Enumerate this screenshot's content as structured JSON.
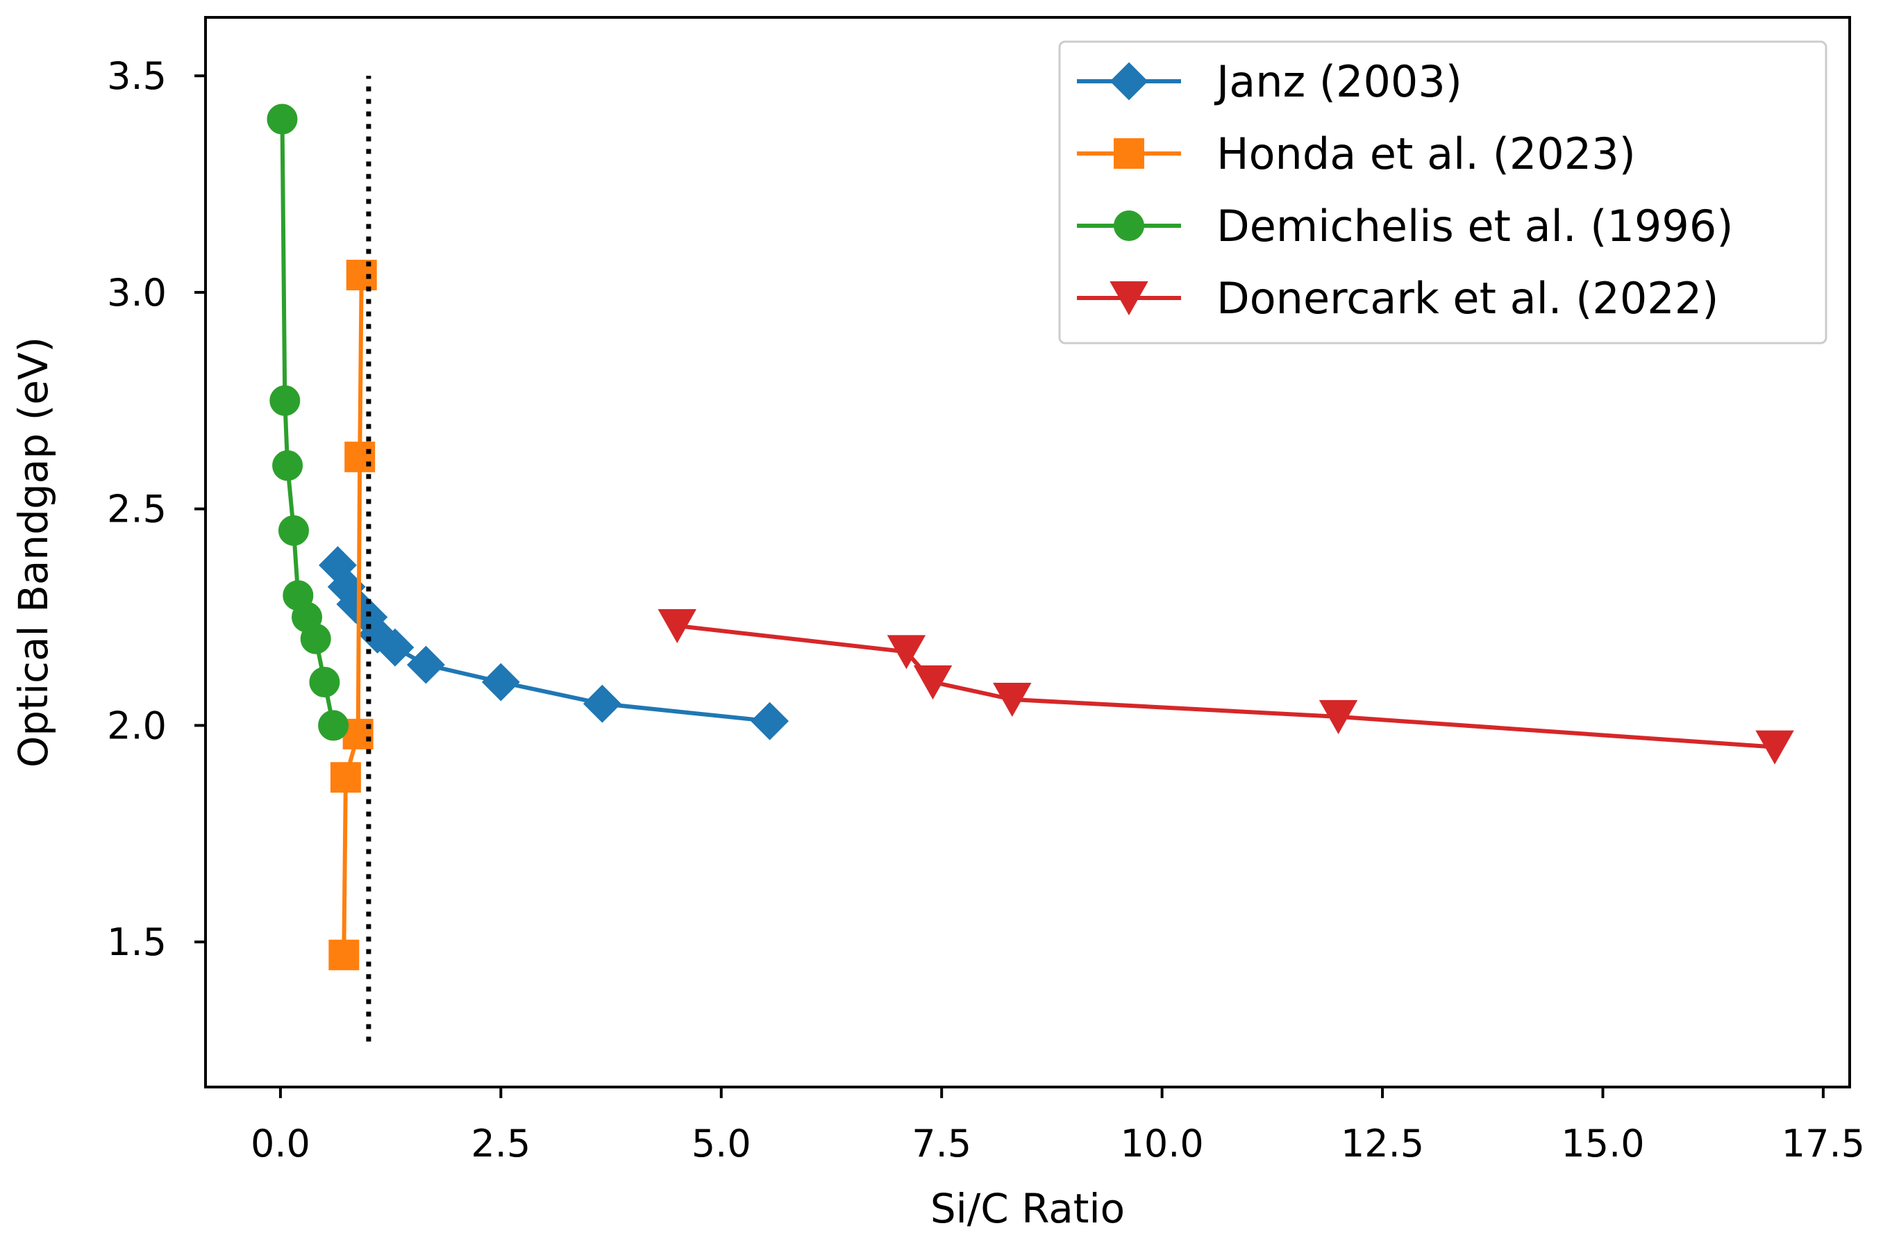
{
  "chart_data": {
    "type": "line",
    "title": "",
    "xlabel": "Si/C Ratio",
    "ylabel": "Optical Bandgap (eV)",
    "xlim": [
      -0.85,
      17.8
    ],
    "ylim": [
      1.165,
      3.635
    ],
    "xticks": [
      0.0,
      2.5,
      5.0,
      7.5,
      10.0,
      12.5,
      15.0,
      17.5
    ],
    "xtick_labels": [
      "0.0",
      "2.5",
      "5.0",
      "7.5",
      "10.0",
      "12.5",
      "15.0",
      "17.5"
    ],
    "yticks": [
      1.5,
      2.0,
      2.5,
      3.0,
      3.5
    ],
    "ytick_labels": [
      "1.5",
      "2.0",
      "2.5",
      "3.0",
      "3.5"
    ],
    "grid": false,
    "legend_position": "top-right",
    "reference_line": {
      "x": 1.0,
      "y_range": [
        1.27,
        3.5
      ],
      "style": "dotted",
      "color": "#000000"
    },
    "series": [
      {
        "name": "Janz (2003)",
        "color": "#1f77b4",
        "marker": "diamond",
        "x": [
          0.65,
          0.75,
          0.85,
          1.0,
          1.1,
          1.3,
          1.65,
          2.5,
          3.65,
          5.55
        ],
        "y": [
          2.37,
          2.32,
          2.28,
          2.25,
          2.21,
          2.18,
          2.14,
          2.1,
          2.05,
          2.01
        ]
      },
      {
        "name": "Honda et al. (2023)",
        "color": "#ff7f0e",
        "marker": "square",
        "x": [
          0.72,
          0.74,
          0.88,
          0.9,
          0.92
        ],
        "y": [
          1.47,
          1.88,
          1.98,
          2.62,
          3.04
        ]
      },
      {
        "name": "Demichelis et al. (1996)",
        "color": "#2ca02c",
        "marker": "circle",
        "x": [
          0.02,
          0.05,
          0.08,
          0.15,
          0.2,
          0.3,
          0.4,
          0.5,
          0.6
        ],
        "y": [
          3.4,
          2.75,
          2.6,
          2.45,
          2.3,
          2.25,
          2.2,
          2.1,
          2.0
        ]
      },
      {
        "name": "Donercark et al. (2022)",
        "color": "#d62728",
        "marker": "triangle-down",
        "x": [
          4.5,
          7.1,
          7.4,
          8.3,
          12.0,
          16.95
        ],
        "y": [
          2.23,
          2.17,
          2.1,
          2.06,
          2.02,
          1.95
        ]
      }
    ]
  }
}
